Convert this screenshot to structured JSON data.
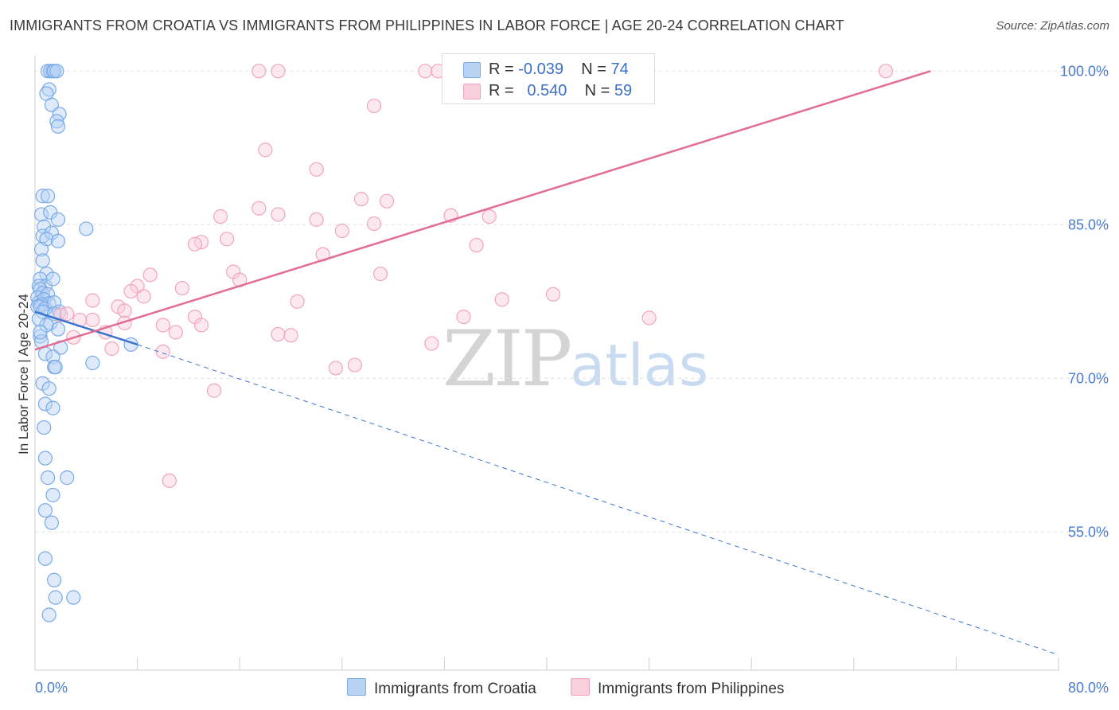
{
  "chart_data": {
    "type": "scatter",
    "title": "IMMIGRANTS FROM CROATIA VS IMMIGRANTS FROM PHILIPPINES IN LABOR FORCE | AGE 20-24 CORRELATION CHART",
    "source": "Source: ZipAtlas.com",
    "xlabel": "",
    "ylabel": "In Labor Force | Age 20-24",
    "xlim": [
      0,
      80
    ],
    "ylim": [
      41.5,
      101.5
    ],
    "x_tick_labels": [
      "0.0%",
      "80.0%"
    ],
    "y_ticks": [
      55,
      70,
      85,
      100
    ],
    "y_tick_labels": [
      "55.0%",
      "70.0%",
      "85.0%",
      "100.0%"
    ],
    "watermark": {
      "zip": "ZIP",
      "atlas": "atlas"
    },
    "legend": {
      "series": [
        {
          "r_label": "R =",
          "r_value": "-0.039",
          "n_label": "N =",
          "n_value": "74"
        },
        {
          "r_label": "R =",
          "r_value": "0.540",
          "n_label": "N =",
          "n_value": "59"
        }
      ]
    },
    "series": [
      {
        "name": "Immigrants from Croatia",
        "color": "#7aaae8",
        "fill": "#b9d3f4",
        "trend_color": "#3a76d0",
        "trend": {
          "x0": 0.0,
          "y0": 76.5,
          "x1": 8.0,
          "y1": 73.3,
          "x_dash_end": 80.0,
          "y_dash_end": 43.0
        },
        "points": [
          [
            1.0,
            100.0
          ],
          [
            1.2,
            100.0
          ],
          [
            1.4,
            100.0
          ],
          [
            1.5,
            100.0
          ],
          [
            1.7,
            100.0
          ],
          [
            1.1,
            98.2
          ],
          [
            0.9,
            97.8
          ],
          [
            1.3,
            96.7
          ],
          [
            1.9,
            95.8
          ],
          [
            1.7,
            95.1
          ],
          [
            1.8,
            94.6
          ],
          [
            0.6,
            87.8
          ],
          [
            1.0,
            87.8
          ],
          [
            0.5,
            86.0
          ],
          [
            1.2,
            86.2
          ],
          [
            1.8,
            85.5
          ],
          [
            0.7,
            84.8
          ],
          [
            0.6,
            83.9
          ],
          [
            1.3,
            84.2
          ],
          [
            0.9,
            83.6
          ],
          [
            1.8,
            83.4
          ],
          [
            0.5,
            82.6
          ],
          [
            0.6,
            81.5
          ],
          [
            0.9,
            80.2
          ],
          [
            0.4,
            79.7
          ],
          [
            0.8,
            79.0
          ],
          [
            1.4,
            79.7
          ],
          [
            0.3,
            79.0
          ],
          [
            0.4,
            78.7
          ],
          [
            0.6,
            78.3
          ],
          [
            0.2,
            77.9
          ],
          [
            1.0,
            78.2
          ],
          [
            0.3,
            77.4
          ],
          [
            0.7,
            77.7
          ],
          [
            1.1,
            77.3
          ],
          [
            0.5,
            77.2
          ],
          [
            0.2,
            77.0
          ],
          [
            0.4,
            77.0
          ],
          [
            0.8,
            76.8
          ],
          [
            1.5,
            77.4
          ],
          [
            0.6,
            76.5
          ],
          [
            1.9,
            76.5
          ],
          [
            0.3,
            75.8
          ],
          [
            2.0,
            73.0
          ],
          [
            0.4,
            74.1
          ],
          [
            0.5,
            73.6
          ],
          [
            0.8,
            72.4
          ],
          [
            1.4,
            72.1
          ],
          [
            1.5,
            71.1
          ],
          [
            1.6,
            71.1
          ],
          [
            0.6,
            69.5
          ],
          [
            1.1,
            69.0
          ],
          [
            0.8,
            67.5
          ],
          [
            1.4,
            67.1
          ],
          [
            0.7,
            65.2
          ],
          [
            0.8,
            62.2
          ],
          [
            1.0,
            60.3
          ],
          [
            1.4,
            58.6
          ],
          [
            0.8,
            57.1
          ],
          [
            2.5,
            60.3
          ],
          [
            1.3,
            55.9
          ],
          [
            0.8,
            52.4
          ],
          [
            1.5,
            50.3
          ],
          [
            1.6,
            48.6
          ],
          [
            3.0,
            48.6
          ],
          [
            1.1,
            46.9
          ],
          [
            4.0,
            84.6
          ],
          [
            7.5,
            73.3
          ],
          [
            4.5,
            71.5
          ],
          [
            1.5,
            76.3
          ],
          [
            1.2,
            75.4
          ],
          [
            1.8,
            74.8
          ],
          [
            0.9,
            75.2
          ],
          [
            0.4,
            74.5
          ]
        ]
      },
      {
        "name": "Immigrants from Philippines",
        "color": "#f2a5bd",
        "fill": "#f9cfdc",
        "trend_color": "#e36d95",
        "trend": {
          "x0": 0.0,
          "y0": 72.8,
          "x1": 70.0,
          "y1": 100.0
        },
        "points": [
          [
            17.5,
            100.0
          ],
          [
            19.0,
            100.0
          ],
          [
            30.5,
            100.0
          ],
          [
            31.5,
            100.0
          ],
          [
            66.5,
            100.0
          ],
          [
            26.5,
            96.6
          ],
          [
            18.0,
            92.3
          ],
          [
            22.0,
            90.4
          ],
          [
            25.5,
            87.5
          ],
          [
            27.5,
            87.3
          ],
          [
            17.5,
            86.6
          ],
          [
            19.0,
            86.0
          ],
          [
            14.5,
            85.8
          ],
          [
            22.0,
            85.5
          ],
          [
            32.5,
            85.9
          ],
          [
            35.5,
            85.8
          ],
          [
            26.5,
            85.1
          ],
          [
            24.0,
            84.4
          ],
          [
            15.0,
            83.6
          ],
          [
            13.0,
            83.3
          ],
          [
            12.5,
            83.1
          ],
          [
            34.5,
            83.0
          ],
          [
            22.5,
            82.1
          ],
          [
            9.0,
            80.1
          ],
          [
            15.5,
            80.4
          ],
          [
            16.0,
            79.6
          ],
          [
            8.0,
            79.0
          ],
          [
            11.5,
            78.8
          ],
          [
            7.5,
            78.5
          ],
          [
            8.5,
            78.0
          ],
          [
            20.5,
            77.5
          ],
          [
            4.5,
            77.6
          ],
          [
            2.0,
            76.2
          ],
          [
            6.5,
            77.0
          ],
          [
            7.0,
            76.6
          ],
          [
            12.5,
            76.0
          ],
          [
            2.5,
            76.3
          ],
          [
            4.5,
            75.7
          ],
          [
            3.5,
            75.7
          ],
          [
            7.0,
            75.4
          ],
          [
            10.0,
            75.2
          ],
          [
            13.0,
            75.2
          ],
          [
            3.0,
            74.0
          ],
          [
            5.5,
            74.5
          ],
          [
            11.0,
            74.5
          ],
          [
            19.0,
            74.3
          ],
          [
            20.0,
            74.2
          ],
          [
            48.0,
            75.9
          ],
          [
            6.0,
            72.9
          ],
          [
            10.0,
            72.6
          ],
          [
            23.5,
            71.0
          ],
          [
            25.0,
            71.3
          ],
          [
            14.0,
            68.8
          ],
          [
            10.5,
            60.0
          ],
          [
            31.0,
            73.4
          ],
          [
            33.5,
            76.0
          ],
          [
            36.5,
            77.7
          ],
          [
            40.5,
            78.2
          ],
          [
            27.0,
            80.2
          ]
        ]
      }
    ]
  }
}
